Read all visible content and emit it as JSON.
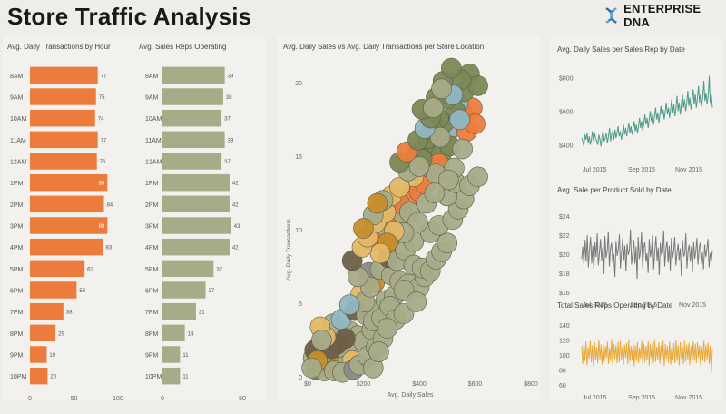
{
  "header": {
    "title": "Store Traffic Analysis",
    "logo_text": "ENTERPRISE DNA",
    "logo_icon": "dna-helix-icon"
  },
  "colors": {
    "orange": "#ec7c3c",
    "olive": "#a7ab87",
    "teal": "#4e9988",
    "grey": "#7a7a7a",
    "gold": "#e9a93a",
    "panel": "#f2f1ee",
    "background": "#eeedea"
  },
  "chart_data": [
    {
      "id": "transactions-by-hour",
      "type": "bar",
      "orientation": "horizontal",
      "title": "Avg. Daily Transactions by Hour",
      "categories": [
        "8AM",
        "9AM",
        "10AM",
        "11AM",
        "12AM",
        "1PM",
        "2PM",
        "3PM",
        "4PM",
        "5PM",
        "6PM",
        "7PM",
        "8PM",
        "9PM",
        "10PM"
      ],
      "values": [
        77,
        75,
        74,
        77,
        76,
        88,
        84,
        88,
        83,
        62,
        53,
        38,
        29,
        19,
        20
      ],
      "xlim": [
        0,
        100
      ],
      "xticks": [
        0,
        50,
        100
      ],
      "color": "#ec7c3c"
    },
    {
      "id": "sales-reps-operating",
      "type": "bar",
      "orientation": "horizontal",
      "title": "Avg. Sales Reps Operating",
      "categories": [
        "8AM",
        "9AM",
        "10AM",
        "11AM",
        "12AM",
        "1PM",
        "2PM",
        "3PM",
        "4PM",
        "5PM",
        "6PM",
        "7PM",
        "8PM",
        "9PM",
        "10PM"
      ],
      "values": [
        39,
        38,
        37,
        39,
        37,
        42,
        42,
        43,
        42,
        32,
        27,
        21,
        14,
        11,
        11
      ],
      "xlim": [
        0,
        50
      ],
      "xticks": [
        0,
        50
      ],
      "color": "#a7ab87"
    },
    {
      "id": "sales-vs-transactions",
      "type": "scatter",
      "title": "Avg. Daily Sales vs Avg. Daily Transactions per Store Location",
      "xlabel": "Avg. Daily Sales",
      "ylabel": "Avg. Daily Transactions",
      "xlim": [
        0,
        800
      ],
      "ylim": [
        0,
        21
      ],
      "xticks": [
        0,
        200,
        400,
        600,
        800
      ],
      "xticklabels": [
        "$0",
        "$200",
        "$400",
        "$600",
        "$800"
      ],
      "yticks": [
        0,
        5,
        10,
        15,
        20
      ],
      "colors": [
        "#a7ab87",
        "#ec7c3c",
        "#7c8856",
        "#e3b866",
        "#8fb7c2",
        "#8a8a8a",
        "#6e5f48",
        "#c78d2a"
      ],
      "points": [
        [
          20,
          1.3,
          0
        ],
        [
          45,
          0.9,
          0
        ],
        [
          70,
          1.5,
          5
        ],
        [
          95,
          0.8,
          6
        ],
        [
          120,
          1.2,
          4
        ],
        [
          40,
          2.1,
          1
        ],
        [
          80,
          2.3,
          0
        ],
        [
          110,
          2.0,
          0
        ],
        [
          140,
          1.8,
          0
        ],
        [
          30,
          0.5,
          2
        ],
        [
          60,
          0.4,
          0
        ],
        [
          100,
          0.6,
          1
        ],
        [
          130,
          0.7,
          0
        ],
        [
          160,
          1.1,
          3
        ],
        [
          75,
          1.0,
          7
        ],
        [
          55,
          1.6,
          4
        ],
        [
          150,
          3.1,
          0
        ],
        [
          90,
          3.6,
          0
        ],
        [
          120,
          3.9,
          4
        ],
        [
          180,
          2.8,
          0
        ],
        [
          200,
          2.4,
          0
        ],
        [
          230,
          3.2,
          0
        ],
        [
          170,
          4.5,
          6
        ],
        [
          210,
          4.2,
          0
        ],
        [
          250,
          4.6,
          0
        ],
        [
          190,
          5.6,
          3
        ],
        [
          240,
          6.4,
          7
        ],
        [
          280,
          5.2,
          0
        ],
        [
          310,
          5.5,
          0
        ],
        [
          220,
          7.1,
          5
        ],
        [
          260,
          7.3,
          0
        ],
        [
          300,
          6.9,
          0
        ],
        [
          330,
          6.5,
          0
        ],
        [
          360,
          6.3,
          0
        ],
        [
          290,
          8.1,
          6
        ],
        [
          320,
          7.9,
          0
        ],
        [
          350,
          8.6,
          0
        ],
        [
          380,
          9.2,
          0
        ],
        [
          250,
          9.6,
          7
        ],
        [
          300,
          9.5,
          2
        ],
        [
          270,
          10.2,
          0
        ],
        [
          310,
          10.6,
          1
        ],
        [
          340,
          11.1,
          0
        ],
        [
          230,
          9.3,
          1
        ],
        [
          400,
          6.1,
          0
        ],
        [
          420,
          6.8,
          0
        ],
        [
          380,
          7.6,
          0
        ],
        [
          410,
          7.4,
          0
        ],
        [
          440,
          7.2,
          0
        ],
        [
          460,
          8.0,
          0
        ],
        [
          480,
          8.5,
          0
        ],
        [
          500,
          9.1,
          0
        ],
        [
          440,
          9.8,
          0
        ],
        [
          470,
          10.3,
          0
        ],
        [
          520,
          10.7,
          0
        ],
        [
          540,
          11.4,
          0
        ],
        [
          560,
          12.1,
          0
        ],
        [
          500,
          12.3,
          0
        ],
        [
          530,
          13.2,
          0
        ],
        [
          580,
          13.0,
          0
        ],
        [
          610,
          13.6,
          0
        ],
        [
          360,
          12.2,
          1
        ],
        [
          330,
          11.8,
          1
        ],
        [
          400,
          12.6,
          1
        ],
        [
          420,
          13.1,
          1
        ],
        [
          380,
          13.6,
          3
        ],
        [
          440,
          14.2,
          4
        ],
        [
          420,
          15.0,
          2
        ],
        [
          460,
          15.8,
          2
        ],
        [
          480,
          15.2,
          2
        ],
        [
          500,
          16.5,
          1
        ],
        [
          520,
          17.0,
          4
        ],
        [
          560,
          17.8,
          1
        ],
        [
          590,
          18.3,
          1
        ],
        [
          540,
          18.6,
          4
        ],
        [
          570,
          16.7,
          1
        ],
        [
          600,
          17.2,
          1
        ],
        [
          470,
          14.5,
          1
        ],
        [
          510,
          15.7,
          2
        ],
        [
          490,
          17.3,
          2
        ],
        [
          530,
          18.1,
          2
        ],
        [
          560,
          19.4,
          2
        ],
        [
          580,
          20.6,
          2
        ],
        [
          610,
          19.8,
          2
        ],
        [
          470,
          17.6,
          2
        ],
        [
          500,
          18.9,
          2
        ],
        [
          550,
          20.2,
          2
        ],
        [
          520,
          19.2,
          4
        ],
        [
          545,
          17.5,
          4
        ],
        [
          460,
          13.8,
          0
        ],
        [
          390,
          15.2,
          2
        ],
        [
          410,
          14.8,
          2
        ],
        [
          430,
          16.2,
          2
        ],
        [
          445,
          16.8,
          2
        ],
        [
          475,
          16.3,
          0
        ],
        [
          525,
          14.2,
          0
        ],
        [
          555,
          15.5,
          0
        ],
        [
          505,
          13.4,
          0
        ],
        [
          365,
          11.2,
          0
        ],
        [
          395,
          10.5,
          0
        ],
        [
          425,
          11.8,
          0
        ],
        [
          455,
          12.5,
          0
        ],
        [
          345,
          9.8,
          0
        ],
        [
          310,
          9.9,
          3
        ],
        [
          285,
          9.1,
          7
        ],
        [
          260,
          8.4,
          3
        ],
        [
          205,
          5.1,
          0
        ],
        [
          150,
          4.9,
          4
        ],
        [
          135,
          2.6,
          6
        ],
        [
          105,
          2.2,
          6
        ],
        [
          85,
          1.9,
          6
        ],
        [
          65,
          2.7,
          3
        ],
        [
          45,
          3.4,
          3
        ],
        [
          25,
          1.8,
          6
        ],
        [
          35,
          1.1,
          7
        ],
        [
          50,
          2.5,
          0
        ],
        [
          15,
          0.6,
          0
        ],
        [
          95,
          0.4,
          0
        ],
        [
          125,
          0.3,
          0
        ],
        [
          165,
          0.5,
          5
        ],
        [
          185,
          0.8,
          0
        ],
        [
          215,
          1.4,
          0
        ],
        [
          245,
          2.0,
          0
        ],
        [
          235,
          3.8,
          0
        ],
        [
          265,
          4.0,
          0
        ],
        [
          295,
          4.8,
          0
        ],
        [
          315,
          3.9,
          0
        ],
        [
          345,
          5.9,
          0
        ],
        [
          270,
          2.6,
          0
        ],
        [
          345,
          4.3,
          0
        ],
        [
          390,
          5.1,
          0
        ],
        [
          235,
          0.6,
          0
        ],
        [
          255,
          1.7,
          0
        ],
        [
          285,
          3.3,
          0
        ],
        [
          225,
          6.1,
          0
        ],
        [
          180,
          6.8,
          0
        ],
        [
          160,
          7.9,
          6
        ],
        [
          195,
          8.8,
          3
        ],
        [
          215,
          9.5,
          3
        ],
        [
          245,
          10.5,
          3
        ],
        [
          280,
          11.2,
          3
        ],
        [
          235,
          11.0,
          0
        ],
        [
          200,
          10.1,
          7
        ],
        [
          300,
          12.3,
          3
        ],
        [
          330,
          12.9,
          3
        ],
        [
          270,
          12.0,
          0
        ],
        [
          250,
          11.8,
          7
        ],
        [
          360,
          14.0,
          0
        ],
        [
          400,
          14.3,
          0
        ],
        [
          330,
          14.6,
          2
        ],
        [
          355,
          15.3,
          1
        ],
        [
          395,
          16.1,
          2
        ],
        [
          420,
          16.9,
          4
        ],
        [
          440,
          17.6,
          2
        ],
        [
          410,
          18.2,
          2
        ],
        [
          460,
          19.0,
          2
        ],
        [
          485,
          20.1,
          2
        ],
        [
          515,
          21.0,
          2
        ],
        [
          450,
          18.3,
          0
        ],
        [
          480,
          19.6,
          0
        ]
      ]
    },
    {
      "id": "sales-per-rep-by-date",
      "type": "line",
      "title": "Avg. Daily Sales per Sales Rep by Date",
      "yticks": [
        "$400",
        "$600",
        "$800"
      ],
      "ylim": [
        300,
        850
      ],
      "yticks_values": [
        400,
        600,
        800
      ],
      "xticks": [
        "Jul 2015",
        "Sep 2015",
        "Nov 2015"
      ],
      "xticks_index": [
        12,
        56,
        100
      ],
      "color": "#4e9988",
      "values": [
        440,
        420,
        390,
        460,
        430,
        470,
        410,
        450,
        400,
        430,
        480,
        420,
        470,
        440,
        420,
        400,
        460,
        430,
        390,
        450,
        480,
        420,
        440,
        470,
        410,
        450,
        500,
        420,
        460,
        480,
        430,
        490,
        440,
        470,
        510,
        450,
        480,
        430,
        470,
        520,
        460,
        500,
        450,
        490,
        530,
        470,
        510,
        460,
        500,
        540,
        480,
        520,
        470,
        510,
        560,
        500,
        540,
        480,
        530,
        580,
        520,
        560,
        500,
        550,
        600,
        540,
        580,
        520,
        570,
        620,
        550,
        590,
        530,
        580,
        630,
        570,
        610,
        550,
        600,
        650,
        580,
        620,
        560,
        610,
        670,
        590,
        640,
        570,
        620,
        690,
        600,
        650,
        580,
        640,
        700,
        620,
        670,
        600,
        650,
        720,
        630,
        680,
        610,
        660,
        730,
        640,
        700,
        620,
        680,
        750,
        650,
        700,
        630,
        690,
        780,
        660,
        710,
        640,
        690,
        810,
        650,
        700,
        620
      ]
    },
    {
      "id": "sale-per-product-by-date",
      "type": "line",
      "title": "Avg. Sale per Product Sold by Date",
      "yticks": [
        "$16",
        "$18",
        "$20",
        "$22",
        "$24"
      ],
      "ylim": [
        15.5,
        24.5
      ],
      "yticks_values": [
        16,
        18,
        20,
        22,
        24
      ],
      "xticks": [
        "Jul 2015",
        "Sep 2015",
        "Nov 2015"
      ],
      "xticks_index": [
        12,
        56,
        100
      ],
      "color": "#7a7a7a",
      "values": [
        19.5,
        20.8,
        18.9,
        21.5,
        19.2,
        22.0,
        18.6,
        20.4,
        21.8,
        19.0,
        20.9,
        18.4,
        21.3,
        19.7,
        22.2,
        18.8,
        20.1,
        21.6,
        19.3,
        20.7,
        17.9,
        21.9,
        19.6,
        20.3,
        22.4,
        18.7,
        20.6,
        21.2,
        19.1,
        20.0,
        17.6,
        21.4,
        19.8,
        20.5,
        22.1,
        18.5,
        20.2,
        21.7,
        19.4,
        20.9,
        18.2,
        21.1,
        19.9,
        20.4,
        22.6,
        18.9,
        20.0,
        21.5,
        19.0,
        20.8,
        17.4,
        21.8,
        19.5,
        20.3,
        22.3,
        18.6,
        20.7,
        21.3,
        19.2,
        20.1,
        18.0,
        21.6,
        19.7,
        20.6,
        22.0,
        18.4,
        20.3,
        21.9,
        19.3,
        20.7,
        17.8,
        21.2,
        19.9,
        20.2,
        22.5,
        18.7,
        20.5,
        21.4,
        19.1,
        20.9,
        18.3,
        21.7,
        19.6,
        20.4,
        21.8,
        18.8,
        20.1,
        21.1,
        19.4,
        20.6,
        17.7,
        21.5,
        19.8,
        20.0,
        22.2,
        18.5,
        20.4,
        21.0,
        19.2,
        20.8,
        18.1,
        21.3,
        19.5,
        20.3,
        21.7,
        18.9,
        20.6,
        21.2,
        19.0,
        20.2,
        18.4,
        21.0,
        19.7,
        20.5,
        21.6,
        18.6,
        20.1,
        19.3,
        20.4
      ]
    },
    {
      "id": "sales-reps-by-date",
      "type": "line",
      "title": "Total Sales Reps Operating by Date",
      "yticks": [
        "60",
        "80",
        "100",
        "120",
        "140"
      ],
      "ylim": [
        55,
        145
      ],
      "yticks_values": [
        60,
        80,
        100,
        120,
        140
      ],
      "xticks": [
        "Jul 2015",
        "Sep 2015",
        "Nov 2015"
      ],
      "xticks_index": [
        12,
        56,
        100
      ],
      "color": "#e9a93a",
      "values": [
        112,
        88,
        115,
        92,
        118,
        86,
        110,
        95,
        119,
        90,
        113,
        85,
        117,
        93,
        111,
        89,
        120,
        94,
        114,
        87,
        116,
        91,
        112,
        96,
        118,
        88,
        110,
        92,
        121,
        86,
        115,
        95,
        113,
        89,
        117,
        90,
        119,
        93,
        111,
        87,
        114,
        96,
        116,
        88,
        120,
        91,
        112,
        94,
        118,
        85,
        113,
        92,
        117,
        89,
        110,
        95,
        119,
        87,
        115,
        90,
        112,
        93,
        118,
        86,
        114,
        96,
        116,
        89,
        121,
        91,
        111,
        94,
        117,
        88,
        113,
        92,
        119,
        85,
        115,
        95,
        112,
        90,
        118,
        87,
        110,
        93,
        116,
        89,
        120,
        92,
        113,
        86,
        117,
        95,
        111,
        88,
        119,
        91,
        114,
        94,
        116,
        87,
        112,
        90,
        118,
        93,
        115,
        89,
        117,
        96,
        113,
        86,
        111,
        92,
        119,
        90,
        114,
        94,
        116,
        88,
        112,
        76,
        108
      ]
    }
  ]
}
